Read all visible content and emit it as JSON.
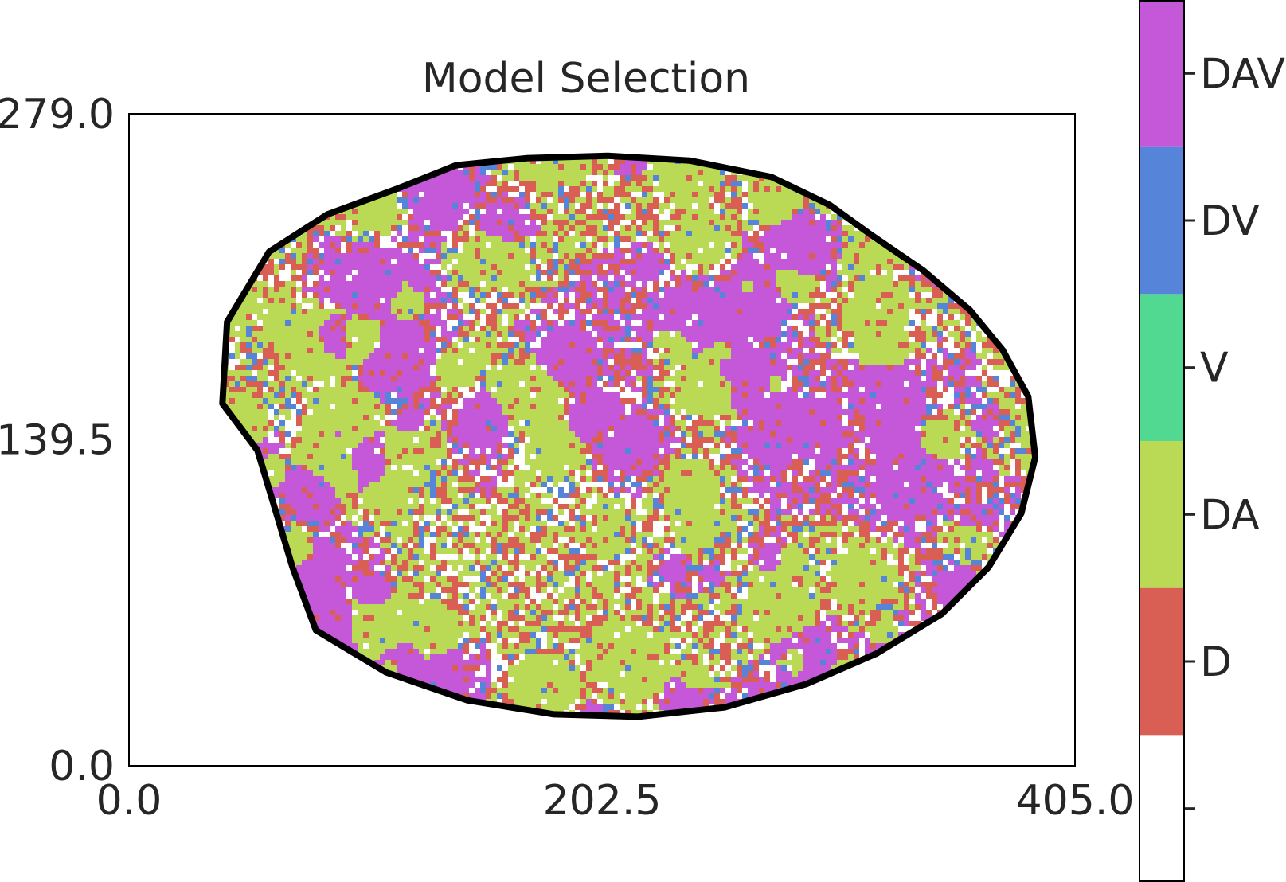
{
  "chart_data": {
    "type": "heatmap",
    "title": "Model Selection",
    "xlabel": "",
    "ylabel": "",
    "xlim": [
      0.0,
      405.0
    ],
    "ylim": [
      0.0,
      279.0
    ],
    "xticks": [
      "0.0",
      "202.5",
      "405.0"
    ],
    "yticks": [
      "0.0",
      "139.5",
      "279.0"
    ],
    "grid": false,
    "colorbar": {
      "placement": "right",
      "categories": [
        {
          "label": "",
          "color": "#ffffff"
        },
        {
          "label": "D",
          "color": "#d95f55"
        },
        {
          "label": "DA",
          "color": "#bad954"
        },
        {
          "label": "V",
          "color": "#52d991"
        },
        {
          "label": "DV",
          "color": "#5684d8"
        },
        {
          "label": "DAV",
          "color": "#c558d8"
        }
      ]
    },
    "region": {
      "outline_color": "#000000",
      "boundary": [
        [
          170,
          260
        ],
        [
          205,
          261
        ],
        [
          240,
          259
        ],
        [
          275,
          252
        ],
        [
          300,
          240
        ],
        [
          318,
          227
        ],
        [
          340,
          212
        ],
        [
          360,
          195
        ],
        [
          374,
          178
        ],
        [
          385,
          158
        ],
        [
          388,
          132
        ],
        [
          382,
          108
        ],
        [
          368,
          85
        ],
        [
          348,
          65
        ],
        [
          320,
          48
        ],
        [
          290,
          35
        ],
        [
          255,
          25
        ],
        [
          218,
          21
        ],
        [
          182,
          22
        ],
        [
          145,
          28
        ],
        [
          110,
          40
        ],
        [
          80,
          58
        ],
        [
          70,
          85
        ],
        [
          55,
          135
        ],
        [
          40,
          155
        ],
        [
          42,
          190
        ],
        [
          60,
          220
        ],
        [
          85,
          236
        ],
        [
          115,
          247
        ],
        [
          140,
          257
        ]
      ]
    }
  }
}
